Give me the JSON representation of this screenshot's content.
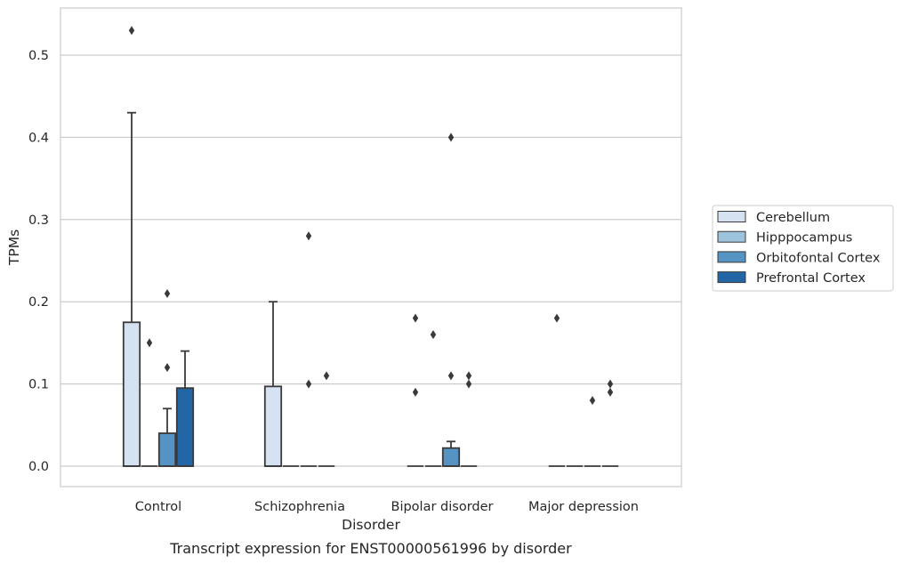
{
  "chart_data": {
    "type": "box",
    "caption": "Transcript expression for ENST00000561996 by disorder",
    "xlabel": "Disorder",
    "ylabel": "TPMs",
    "ylim": [
      -0.025,
      0.556
    ],
    "yticks": [
      "0.0",
      "0.1",
      "0.2",
      "0.3",
      "0.4",
      "0.5"
    ],
    "ytick_values": [
      0.0,
      0.1,
      0.2,
      0.3,
      0.4,
      0.5
    ],
    "grid": "horizontal",
    "legend_position": "right",
    "categories": [
      "Control",
      "Schizophrenia",
      "Bipolar disorder",
      "Major depression"
    ],
    "series": [
      {
        "name": "Cerebellum",
        "color": "#d4e2f1",
        "boxes": [
          {
            "q1": 0.0,
            "median": 0.0,
            "q3": 0.175,
            "whisker_low": 0.0,
            "whisker_high": 0.43,
            "outliers": [
              0.53
            ]
          },
          {
            "q1": 0.0,
            "median": 0.0,
            "q3": 0.097,
            "whisker_low": 0.0,
            "whisker_high": 0.2,
            "outliers": []
          },
          {
            "q1": 0.0,
            "median": 0.0,
            "q3": 0.0,
            "whisker_low": 0.0,
            "whisker_high": 0.0,
            "outliers": [
              0.18,
              0.09
            ]
          },
          {
            "q1": 0.0,
            "median": 0.0,
            "q3": 0.0,
            "whisker_low": 0.0,
            "whisker_high": 0.0,
            "outliers": [
              0.18
            ]
          }
        ]
      },
      {
        "name": "Hipppocampus",
        "color": "#9ec4dd",
        "boxes": [
          {
            "q1": 0.0,
            "median": 0.0,
            "q3": 0.0,
            "whisker_low": 0.0,
            "whisker_high": 0.0,
            "outliers": [
              0.15
            ]
          },
          {
            "q1": 0.0,
            "median": 0.0,
            "q3": 0.0,
            "whisker_low": 0.0,
            "whisker_high": 0.0,
            "outliers": []
          },
          {
            "q1": 0.0,
            "median": 0.0,
            "q3": 0.0,
            "whisker_low": 0.0,
            "whisker_high": 0.0,
            "outliers": [
              0.16
            ]
          },
          {
            "q1": 0.0,
            "median": 0.0,
            "q3": 0.0,
            "whisker_low": 0.0,
            "whisker_high": 0.0,
            "outliers": []
          }
        ]
      },
      {
        "name": "Orbitofontal Cortex",
        "color": "#5593c3",
        "boxes": [
          {
            "q1": 0.0,
            "median": 0.0,
            "q3": 0.04,
            "whisker_low": 0.0,
            "whisker_high": 0.07,
            "outliers": [
              0.21,
              0.12
            ]
          },
          {
            "q1": 0.0,
            "median": 0.0,
            "q3": 0.0,
            "whisker_low": 0.0,
            "whisker_high": 0.0,
            "outliers": [
              0.28,
              0.1
            ]
          },
          {
            "q1": 0.0,
            "median": 0.0,
            "q3": 0.022,
            "whisker_low": 0.0,
            "whisker_high": 0.03,
            "outliers": [
              0.4,
              0.11
            ]
          },
          {
            "q1": 0.0,
            "median": 0.0,
            "q3": 0.0,
            "whisker_low": 0.0,
            "whisker_high": 0.0,
            "outliers": [
              0.08
            ]
          }
        ]
      },
      {
        "name": "Prefrontal Cortex",
        "color": "#2366a6",
        "boxes": [
          {
            "q1": 0.0,
            "median": 0.0,
            "q3": 0.095,
            "whisker_low": 0.0,
            "whisker_high": 0.14,
            "outliers": []
          },
          {
            "q1": 0.0,
            "median": 0.0,
            "q3": 0.0,
            "whisker_low": 0.0,
            "whisker_high": 0.0,
            "outliers": [
              0.11
            ]
          },
          {
            "q1": 0.0,
            "median": 0.0,
            "q3": 0.0,
            "whisker_low": 0.0,
            "whisker_high": 0.0,
            "outliers": [
              0.11,
              0.1
            ]
          },
          {
            "q1": 0.0,
            "median": 0.0,
            "q3": 0.0,
            "whisker_low": 0.0,
            "whisker_high": 0.0,
            "outliers": [
              0.1,
              0.09
            ]
          }
        ]
      }
    ]
  }
}
